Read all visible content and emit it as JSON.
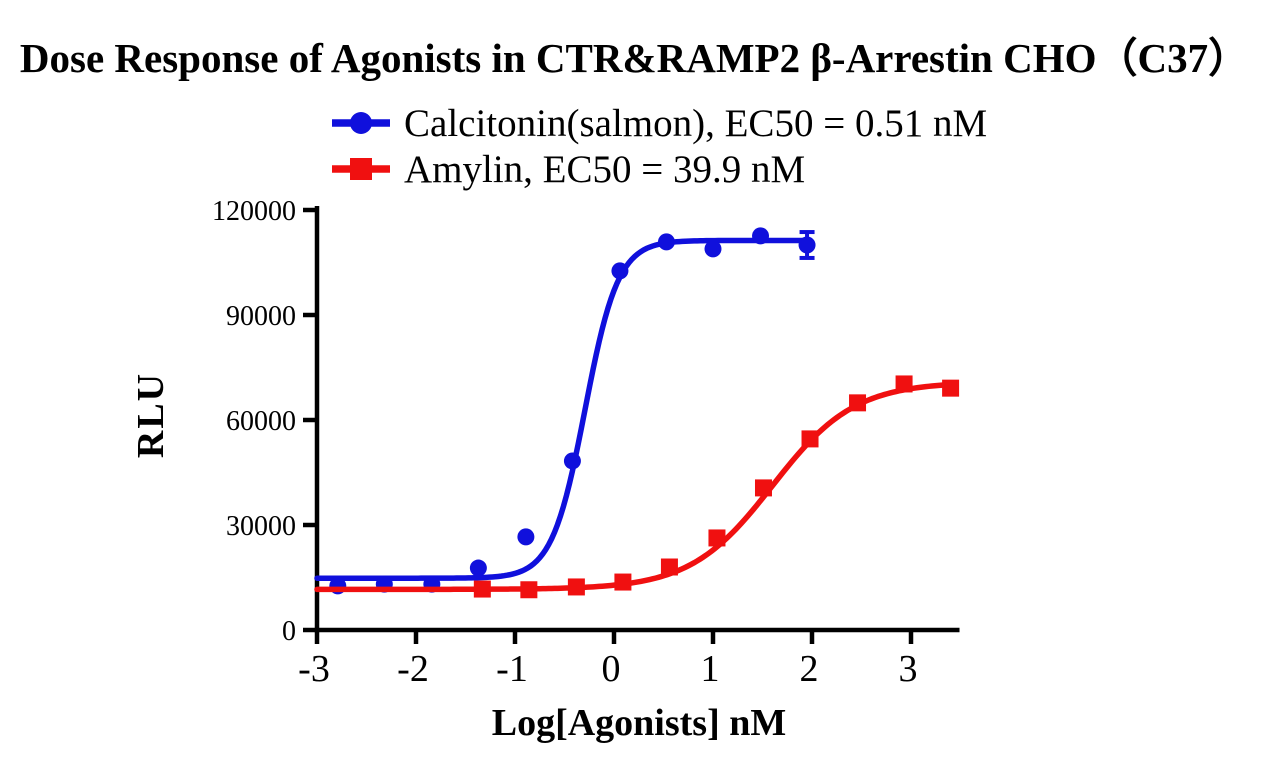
{
  "title": "Dose Response of Agonists in CTR&RAMP2 β-Arrestin CHO（C37）",
  "colors": {
    "calcitonin": "#1010DC",
    "amylin": "#F01010",
    "axis": "#000000",
    "background": "#FFFFFF"
  },
  "legend": {
    "entries": [
      {
        "label": "Calcitonin(salmon), EC50 = 0.51 nM",
        "marker": "circle",
        "color_key": "calcitonin"
      },
      {
        "label": "Amylin, EC50 = 39.9 nM",
        "marker": "square",
        "color_key": "amylin"
      }
    ]
  },
  "chart_data": {
    "type": "scatter",
    "subtype": "dose-response-4PL-fit",
    "title": "Dose Response of Agonists in CTR&RAMP2 β-Arrestin CHO（C37）",
    "xlabel": "Log[Agonists] nM",
    "ylabel": "RLU",
    "xlim": [
      -3,
      3.49
    ],
    "ylim": [
      0,
      120000
    ],
    "x_ticks": [
      -3,
      -2,
      -1,
      0,
      1,
      2,
      3
    ],
    "y_ticks": [
      0,
      30000,
      60000,
      90000,
      120000
    ],
    "grid": false,
    "legend_position": "top-center",
    "series": [
      {
        "name": "Calcitonin(salmon), EC50 = 0.51 nM",
        "short_name": "Calcitonin(salmon)",
        "ec50_nM": 0.51,
        "marker": "circle",
        "color_key": "calcitonin",
        "x": [
          -2.79,
          -2.32,
          -1.84,
          -1.37,
          -0.89,
          -0.42,
          0.06,
          0.53,
          1.0,
          1.48,
          1.95
        ],
        "y": [
          12600,
          13100,
          13100,
          17700,
          26600,
          48300,
          102600,
          110900,
          108900,
          112600,
          110000
        ],
        "error_bars": [
          {
            "point_index": 10,
            "plus_minus": 3700
          }
        ],
        "fit_4pl": {
          "bottom": 14800,
          "top": 111300,
          "log_ec50": -0.292,
          "hill": 2.6,
          "curve_x_start": -3,
          "curve_x_end": 2.0
        }
      },
      {
        "name": "Amylin, EC50 = 39.9 nM",
        "short_name": "Amylin",
        "ec50_nM": 39.9,
        "marker": "square",
        "color_key": "amylin",
        "x": [
          -1.33,
          -0.86,
          -0.38,
          0.09,
          0.56,
          1.04,
          1.51,
          1.98,
          2.46,
          2.93,
          3.4
        ],
        "y": [
          11700,
          11500,
          12300,
          13700,
          18000,
          26300,
          40600,
          54600,
          64900,
          70300,
          69100
        ],
        "error_bars": [],
        "fit_4pl": {
          "bottom": 11600,
          "top": 70900,
          "log_ec50": 1.601,
          "hill": 1.05,
          "curve_x_start": -3,
          "curve_x_end": 3.47
        }
      }
    ]
  }
}
